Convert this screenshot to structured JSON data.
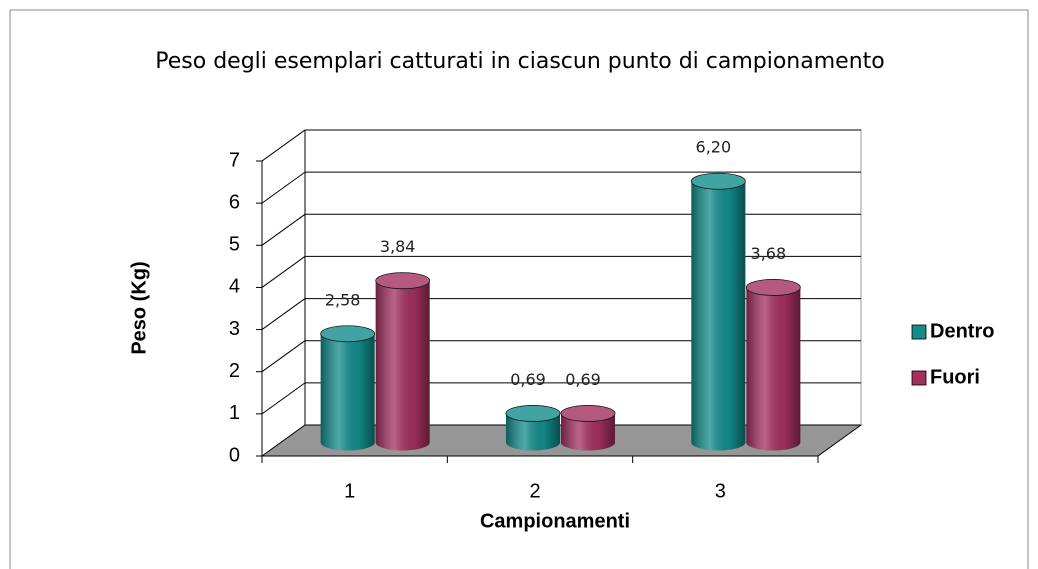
{
  "chart_data": {
    "type": "bar3d",
    "title": "Peso degli esemplari catturati in ciascun punto di campionamento",
    "x_label": "Campionamenti",
    "y_label": "Peso (Kg)",
    "categories": [
      "1",
      "2",
      "3"
    ],
    "series": [
      {
        "name": "Dentro",
        "color": "#138c8c",
        "values": [
          2.58,
          0.69,
          6.2
        ],
        "value_labels": [
          "2,58",
          "0,69",
          "6,20"
        ]
      },
      {
        "name": "Fuori",
        "color": "#a3305f",
        "values": [
          3.84,
          0.69,
          3.68
        ],
        "value_labels": [
          "3,84",
          "0,69",
          "3,68"
        ]
      }
    ],
    "ylim": [
      0,
      7
    ],
    "yticks": [
      0,
      1,
      2,
      3,
      4,
      5,
      6,
      7
    ],
    "grid": true,
    "legend": "right"
  }
}
